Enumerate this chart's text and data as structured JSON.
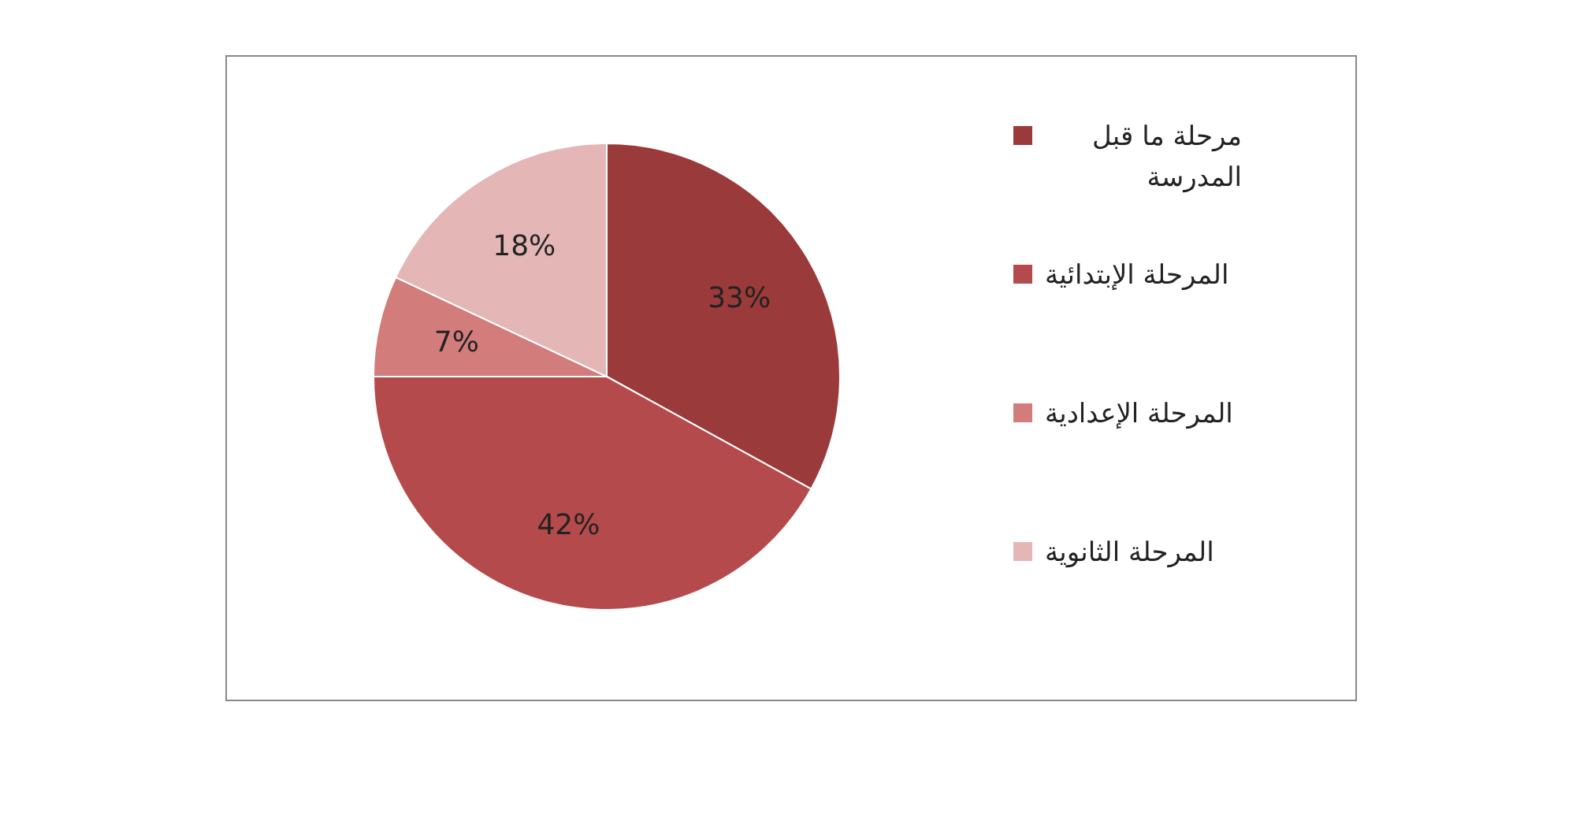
{
  "chart_data": {
    "type": "pie",
    "categories": [
      "مرحلة ما قبل المدرسة",
      "المرحلة الإبتدائية",
      "المرحلة الإعدادية",
      "المرحلة الثانوية"
    ],
    "values": [
      33,
      42,
      7,
      18
    ],
    "colors": [
      "#9b3a3a",
      "#b44a4b",
      "#d27c7b",
      "#e4b6b6"
    ],
    "value_labels": [
      "33%",
      "42%",
      "7%",
      "18%"
    ],
    "legend": "right"
  }
}
